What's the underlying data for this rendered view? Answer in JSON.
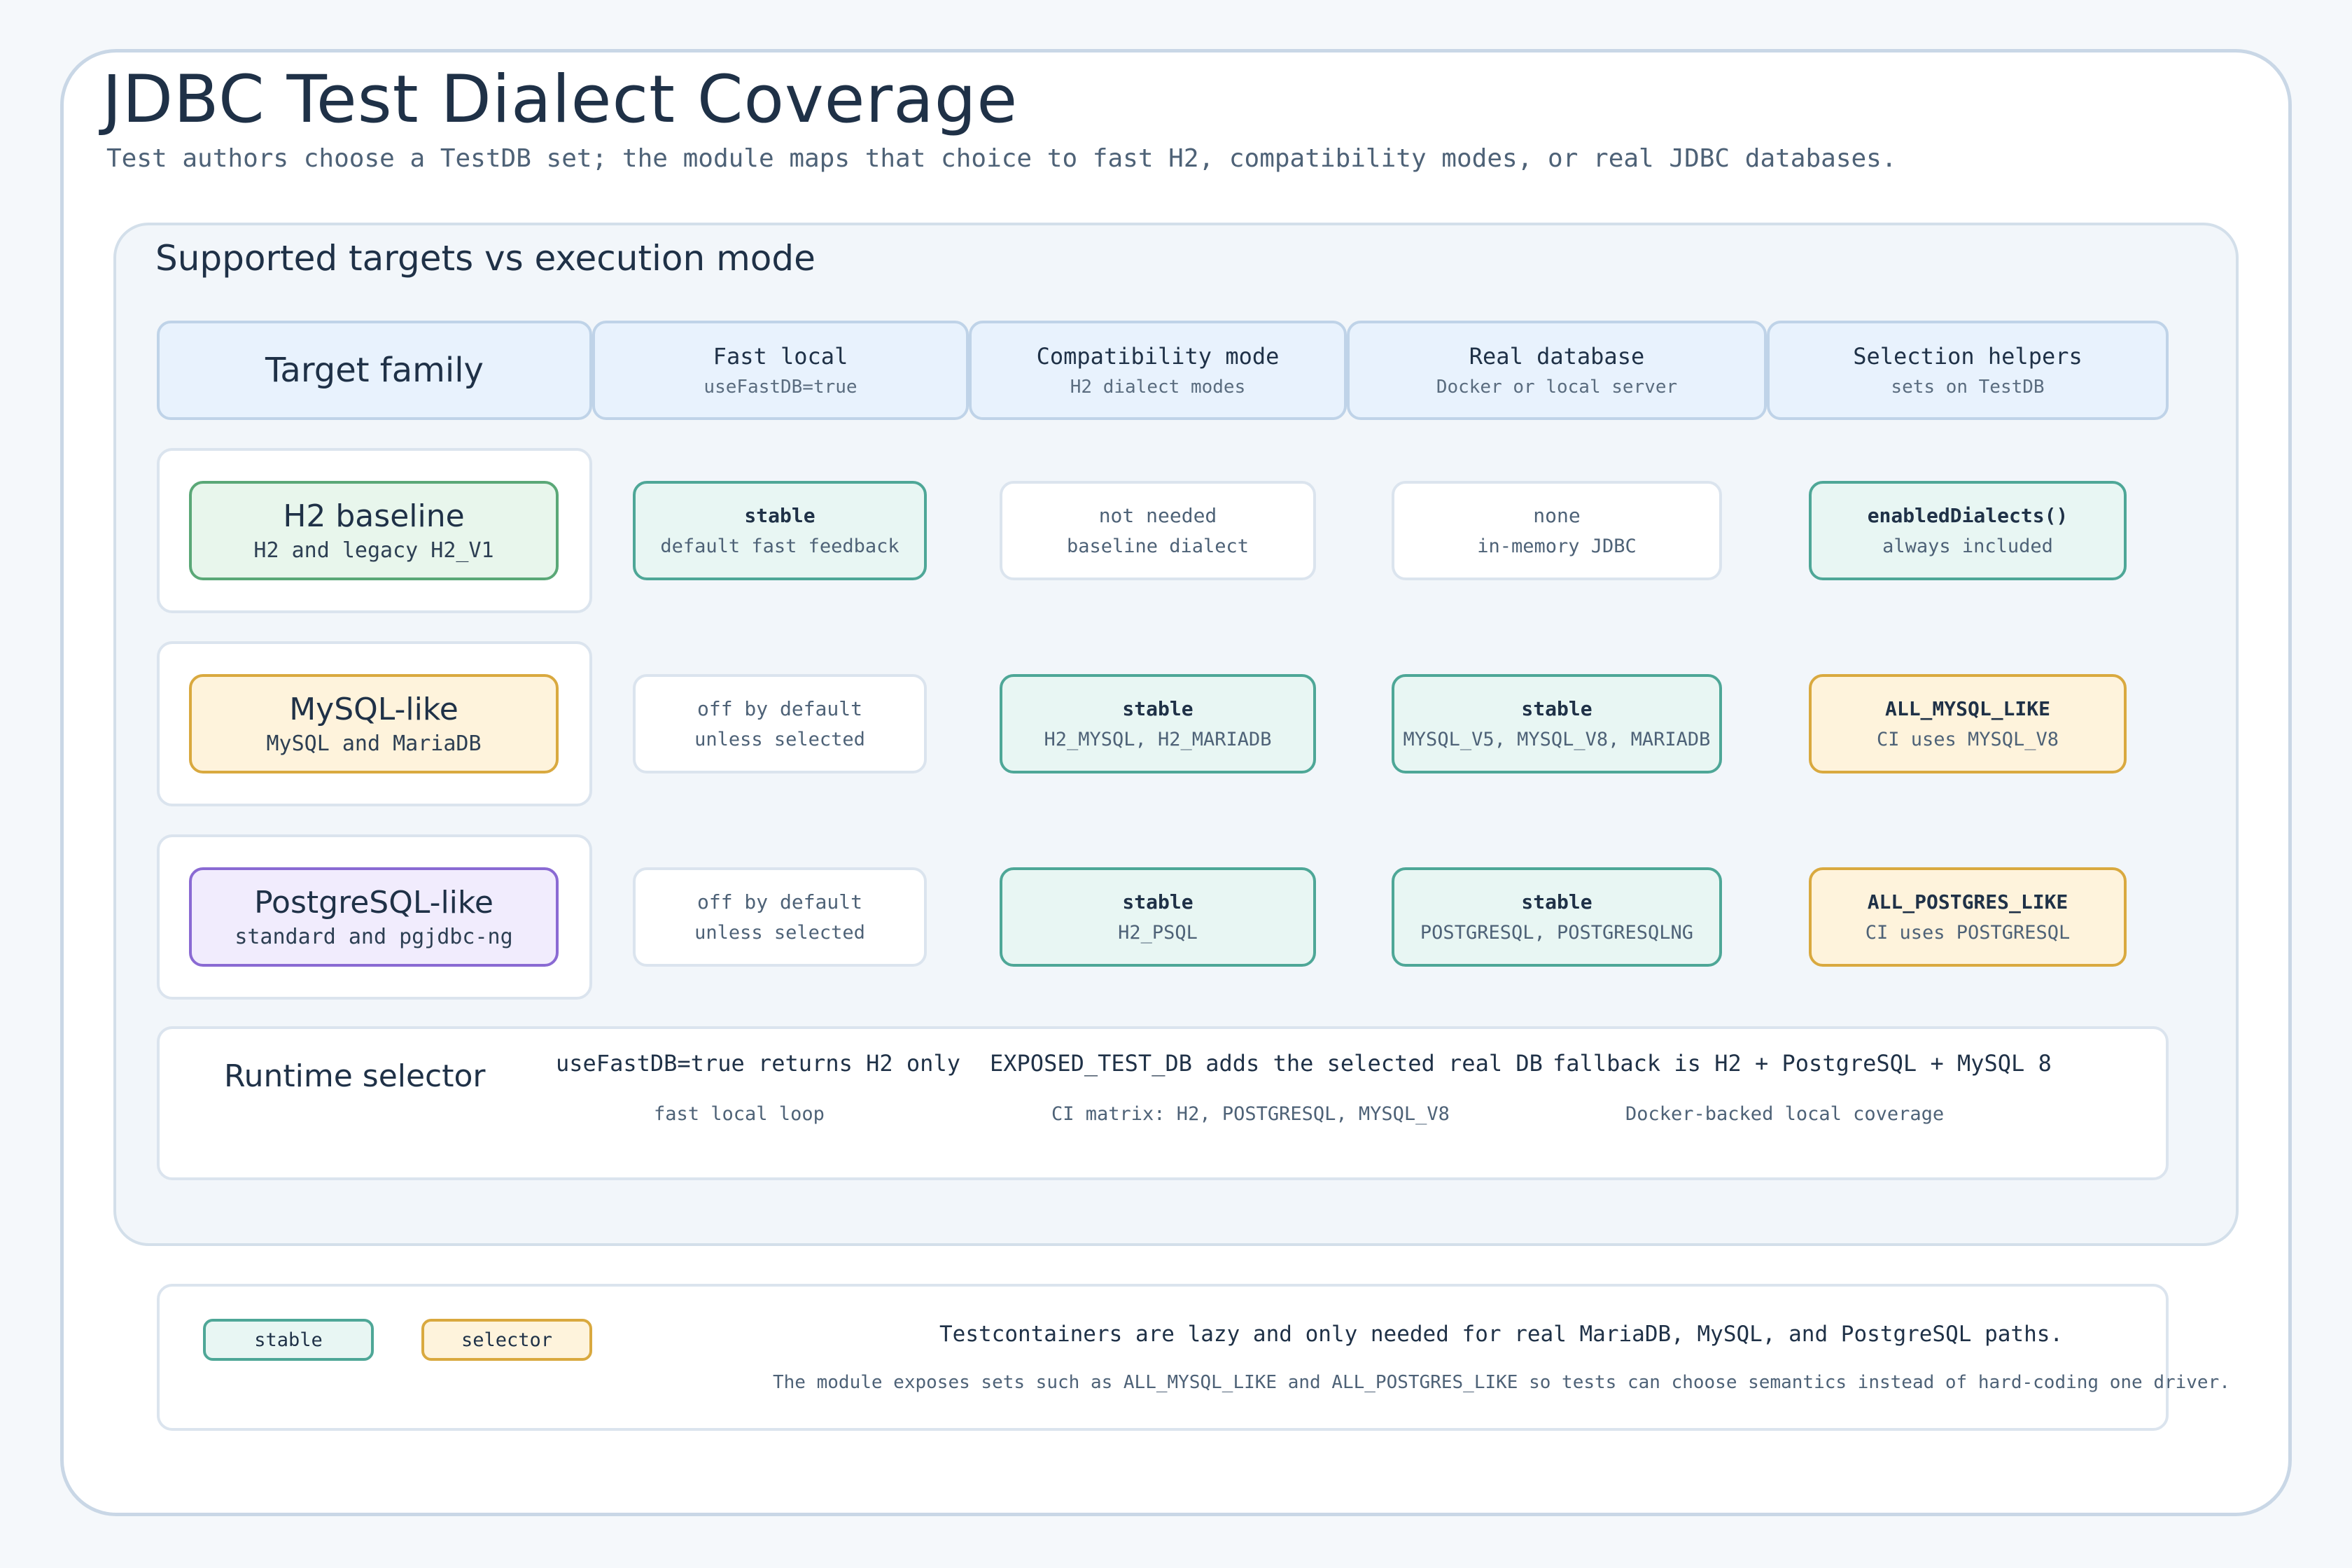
{
  "title": "JDBC Test Dialect Coverage",
  "subtitle": "Test authors choose a TestDB set; the module maps that choice to fast H2, compatibility modes, or real JDBC databases.",
  "panel_title": "Supported targets vs execution mode",
  "columns": {
    "target": "Target family",
    "fast": {
      "title": "Fast local",
      "sub": "useFastDB=true"
    },
    "compat": {
      "title": "Compatibility mode",
      "sub": "H2 dialect modes"
    },
    "real": {
      "title": "Real database",
      "sub": "Docker or local server"
    },
    "helpers": {
      "title": "Selection helpers",
      "sub": "sets on TestDB"
    }
  },
  "rows": [
    {
      "family": "H2 baseline",
      "family_sub": "H2 and legacy H2_V1",
      "fast": {
        "main": "stable",
        "sub": "default fast feedback"
      },
      "compat": {
        "main": "not needed",
        "sub": "baseline dialect"
      },
      "real": {
        "main": "none",
        "sub": "in-memory JDBC"
      },
      "helpers": {
        "main": "enabledDialects()",
        "sub": "always included"
      }
    },
    {
      "family": "MySQL-like",
      "family_sub": "MySQL and MariaDB",
      "fast": {
        "main": "off by default",
        "sub": "unless selected"
      },
      "compat": {
        "main": "stable",
        "sub": "H2_MYSQL, H2_MARIADB"
      },
      "real": {
        "main": "stable",
        "sub": "MYSQL_V5, MYSQL_V8, MARIADB"
      },
      "helpers": {
        "main": "ALL_MYSQL_LIKE",
        "sub": "CI uses MYSQL_V8"
      }
    },
    {
      "family": "PostgreSQL-like",
      "family_sub": "standard and pgjdbc-ng",
      "fast": {
        "main": "off by default",
        "sub": "unless selected"
      },
      "compat": {
        "main": "stable",
        "sub": "H2_PSQL"
      },
      "real": {
        "main": "stable",
        "sub": "POSTGRESQL, POSTGRESQLNG"
      },
      "helpers": {
        "main": "ALL_POSTGRES_LIKE",
        "sub": "CI uses POSTGRESQL"
      }
    }
  ],
  "runtime": {
    "label": "Runtime selector",
    "items": [
      {
        "main": "useFastDB=true returns H2 only",
        "sub": "fast local loop"
      },
      {
        "main": "EXPOSED_TEST_DB adds the selected real DB",
        "sub": "CI matrix: H2, POSTGRESQL, MYSQL_V8"
      },
      {
        "main": "fallback is H2 + PostgreSQL + MySQL 8",
        "sub": "Docker-backed local coverage"
      }
    ]
  },
  "legend": {
    "stable": "stable",
    "selector": "selector",
    "note_main": "Testcontainers are lazy and only needed for real MariaDB, MySQL, and PostgreSQL paths.",
    "note_sub": "The module exposes sets such as ALL_MYSQL_LIKE and ALL_POSTGRES_LIKE so tests can choose semantics instead of hard-coding one driver."
  },
  "colors": {
    "stable_fill": "#e8f6f3",
    "stable_border": "#4ea797",
    "selector_fill": "#fef3dc",
    "selector_border": "#d9a93f",
    "h2_fill": "#e8f6ec",
    "postgres_fill": "#f1ecfd"
  }
}
